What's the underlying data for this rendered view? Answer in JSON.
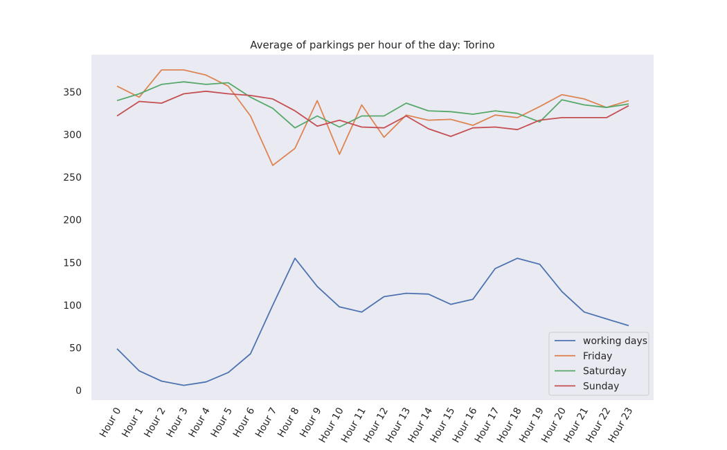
{
  "chart_data": {
    "type": "line",
    "title": "Average of parkings per hour of the day: Torino",
    "xlabel": "",
    "ylabel": "",
    "categories": [
      "Hour 0",
      "Hour 1",
      "Hour 2",
      "Hour 3",
      "Hour 4",
      "Hour 5",
      "Hour 6",
      "Hour 7",
      "Hour 8",
      "Hour 9",
      "Hour 10",
      "Hour 11",
      "Hour 12",
      "Hour 13",
      "Hour 14",
      "Hour 15",
      "Hour 16",
      "Hour 17",
      "Hour 18",
      "Hour 19",
      "Hour 20",
      "Hour 21",
      "Hour 22",
      "Hour 23"
    ],
    "yticks": [
      0,
      50,
      100,
      150,
      200,
      250,
      300,
      350
    ],
    "ylim": [
      -10,
      390
    ],
    "grid": false,
    "legend_position": "lower-right",
    "series": [
      {
        "name": "working days",
        "color": "#4c72b0",
        "values": [
          49,
          23,
          11,
          6,
          10,
          21,
          43,
          100,
          155,
          122,
          98,
          92,
          110,
          114,
          113,
          101,
          107,
          143,
          155,
          148,
          116,
          92,
          84,
          76
        ]
      },
      {
        "name": "Friday",
        "color": "#dd8452",
        "values": [
          357,
          344,
          376,
          376,
          370,
          357,
          322,
          264,
          284,
          340,
          277,
          335,
          297,
          323,
          317,
          318,
          311,
          323,
          320,
          333,
          347,
          342,
          332,
          340
        ]
      },
      {
        "name": "Saturday",
        "color": "#55a868",
        "values": [
          340,
          348,
          359,
          362,
          359,
          361,
          344,
          331,
          308,
          322,
          309,
          322,
          322,
          337,
          328,
          327,
          324,
          328,
          325,
          315,
          341,
          335,
          332,
          336
        ]
      },
      {
        "name": "Sunday",
        "color": "#c44e52",
        "values": [
          322,
          339,
          337,
          348,
          351,
          348,
          346,
          342,
          328,
          310,
          317,
          309,
          308,
          322,
          307,
          298,
          308,
          309,
          306,
          317,
          320,
          320,
          320,
          334
        ]
      }
    ]
  }
}
